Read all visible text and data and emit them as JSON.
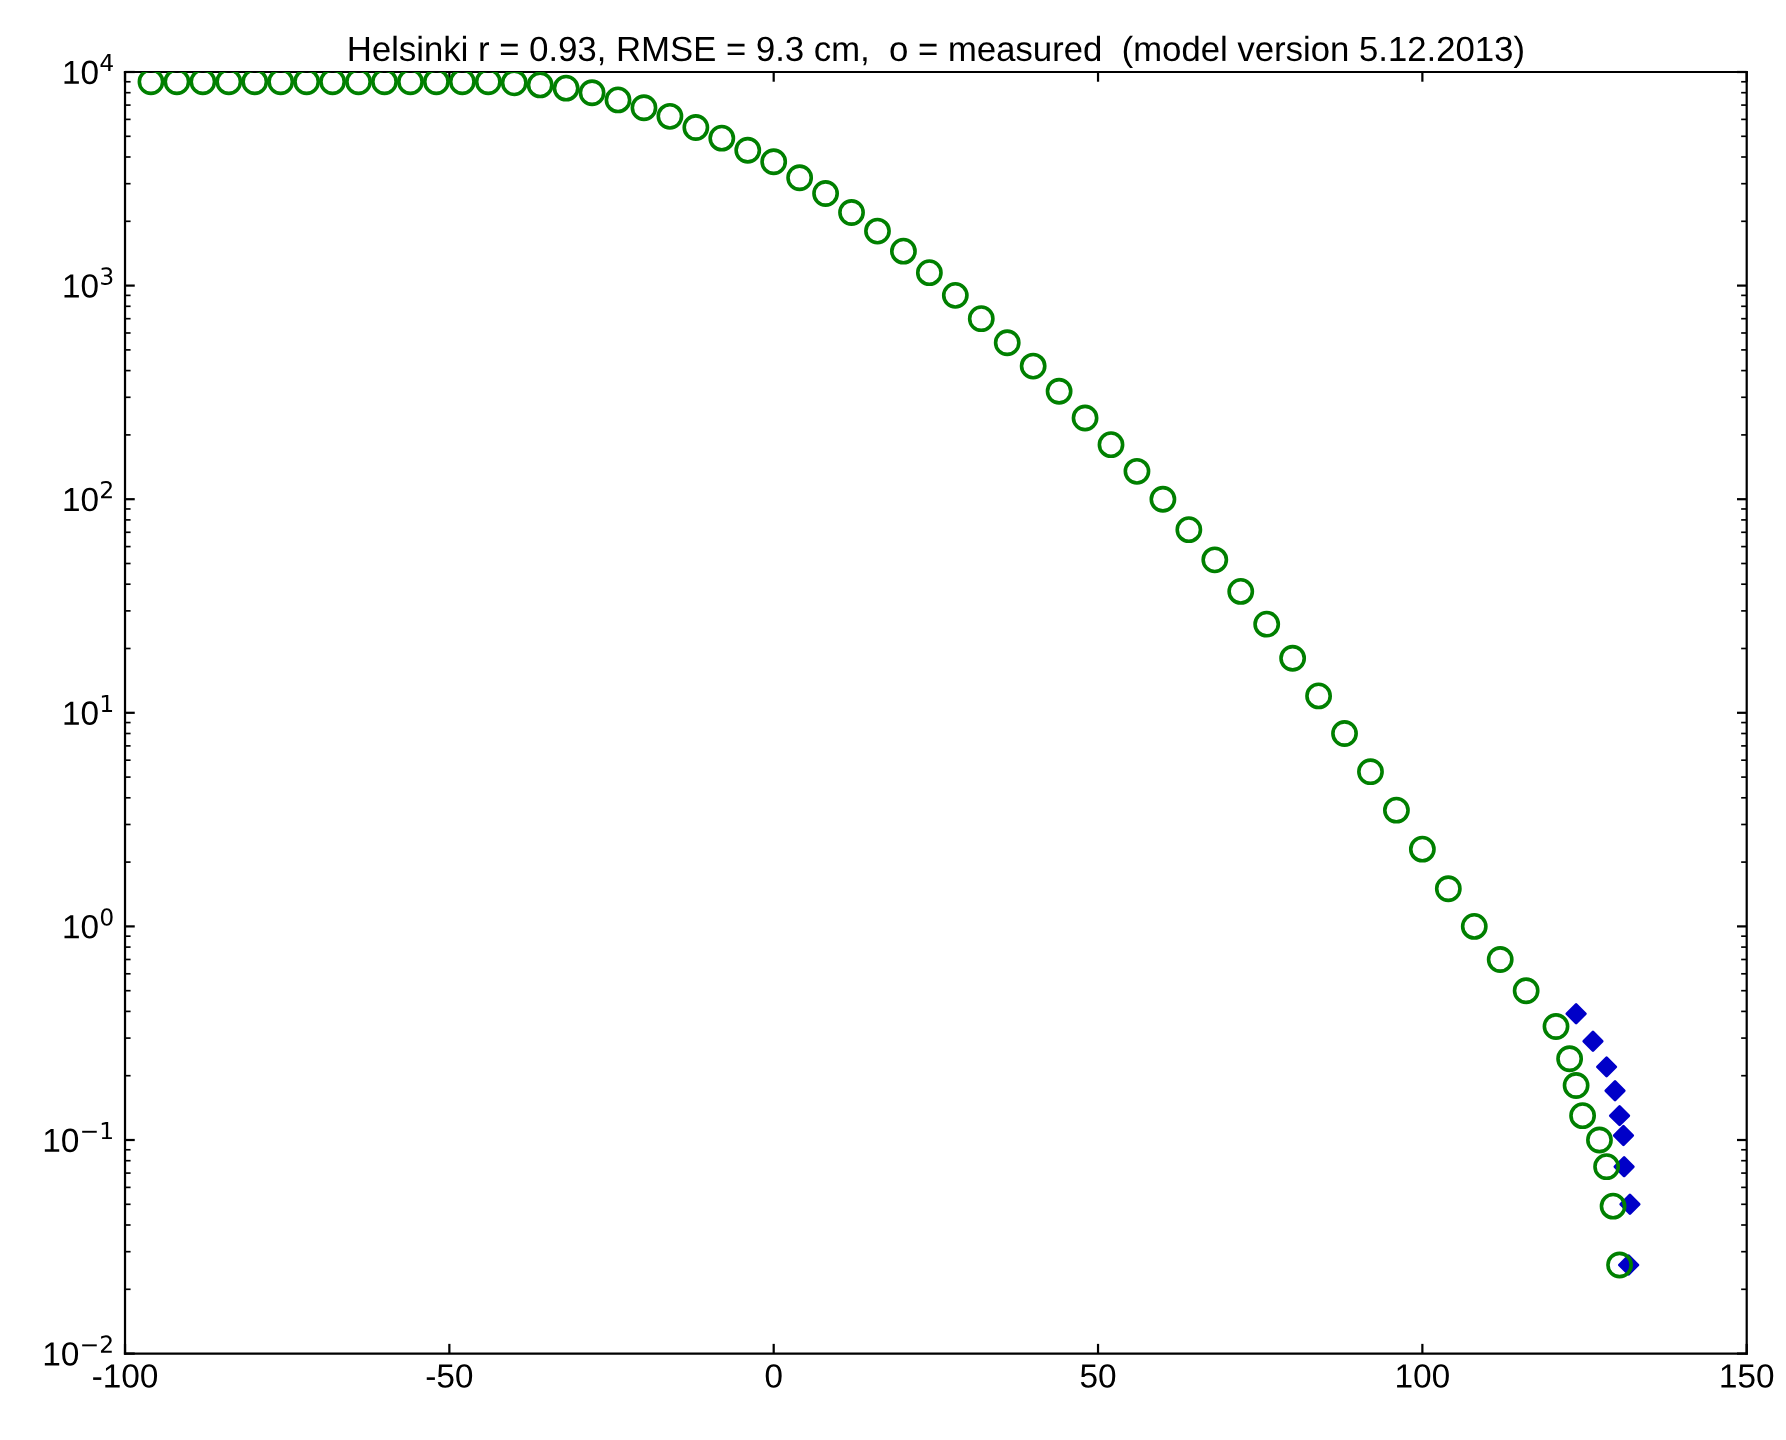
{
  "chart_data": {
    "type": "scatter",
    "title": "Helsinki r = 0.93, RMSE = 9.3 cm,  o = measured  (model version 5.12.2013)",
    "log": "y",
    "grid": false,
    "xlim": [
      -100,
      150
    ],
    "xticks": [
      -100,
      -50,
      0,
      50,
      100,
      150
    ],
    "ylim": [
      0.01,
      10000
    ],
    "yticks": [
      {
        "value": 0.01,
        "label": "10$^{−2}$"
      },
      {
        "value": 0.1,
        "label": "10$^{−1}$"
      },
      {
        "value": 1,
        "label": "10$^{0}$"
      },
      {
        "value": 10,
        "label": "10$^{1}$"
      },
      {
        "value": 100,
        "label": "10$^{2}$"
      },
      {
        "value": 1000,
        "label": "10$^{3}$"
      },
      {
        "value": 10000,
        "label": "10$^{4}$"
      }
    ],
    "series": [
      {
        "color": "#0000c8",
        "marker": "diamond",
        "x": [
          123.7,
          126.3,
          128.4,
          129.7,
          130.4,
          131,
          131.1,
          132,
          131.8
        ],
        "values": [
          0.39,
          0.29,
          0.22,
          0.17,
          0.13,
          0.105,
          0.075,
          0.05,
          0.026
        ]
      },
      {
        "color": "#008000",
        "marker": "circle",
        "x": [
          -96,
          -92,
          -88,
          -84,
          -80,
          -76,
          -72,
          -68,
          -64,
          -60,
          -56,
          -52,
          -48,
          -44,
          -40,
          -36,
          -32,
          -28,
          -24,
          -20,
          -16,
          -12,
          -8,
          -4,
          0,
          4,
          8,
          12,
          16,
          20,
          24,
          28,
          32,
          36,
          40,
          44,
          48,
          52,
          56,
          60,
          64,
          68,
          72,
          76,
          80,
          84,
          88,
          92,
          96,
          100,
          104,
          108,
          112,
          116,
          120.6,
          122.7,
          123.7,
          124.7,
          127.3,
          128.4,
          129.4,
          130.4
        ],
        "values": [
          9000,
          9000,
          9000,
          9000,
          9000,
          9000,
          9000,
          9000,
          9000,
          9000,
          9000,
          9000,
          9000,
          9000,
          8900,
          8700,
          8400,
          8000,
          7400,
          6800,
          6200,
          5500,
          4900,
          4300,
          3800,
          3200,
          2700,
          2200,
          1800,
          1450,
          1150,
          900,
          700,
          540,
          420,
          320,
          240,
          180,
          135,
          100,
          72,
          52,
          37,
          26,
          18,
          12,
          8,
          5.3,
          3.5,
          2.3,
          1.5,
          1.0,
          0.7,
          0.5,
          0.34,
          0.24,
          0.18,
          0.13,
          0.1,
          0.075,
          0.049,
          0.026
        ]
      }
    ]
  }
}
